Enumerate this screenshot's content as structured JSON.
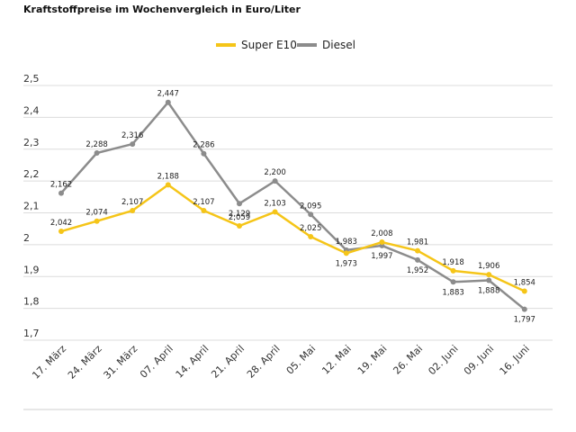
{
  "chart_data": {
    "type": "line",
    "title": "Kraftstoffpreise im Wochenvergleich in Euro/Liter",
    "categories": [
      "17. März",
      "24. März",
      "31. März",
      "07. April",
      "14. April",
      "21. April",
      "28. April",
      "05. Mai",
      "12. Mai",
      "19. Mai",
      "26. Mai",
      "02. Juni",
      "09. Juni",
      "16. Juni"
    ],
    "y_ticks": [
      "2,5",
      "2,4",
      "2,3",
      "2,2",
      "2,1",
      "2",
      "1,9",
      "1,8",
      "1,7"
    ],
    "ylim": [
      1.7,
      2.5
    ],
    "grid": true,
    "legend_placement": "top-center",
    "series": [
      {
        "name": "Super E10",
        "color": "#f5c518",
        "values": [
          2.042,
          2.074,
          2.107,
          2.188,
          2.107,
          2.059,
          2.103,
          2.025,
          1.973,
          2.008,
          1.981,
          1.918,
          1.906,
          1.854
        ],
        "labels": [
          "2,042",
          "2,074",
          "2,107",
          "2,188",
          "2,107",
          "2,059",
          "2,103",
          "2,025",
          "1,973",
          "2,008",
          "1,981",
          "1,918",
          "1,906",
          "1,854"
        ]
      },
      {
        "name": "Diesel",
        "color": "#8c8c8c",
        "values": [
          2.162,
          2.288,
          2.316,
          2.447,
          2.286,
          2.129,
          2.2,
          2.095,
          1.983,
          1.997,
          1.952,
          1.883,
          1.888,
          1.797
        ],
        "labels": [
          "2,162",
          "2,288",
          "2,316",
          "2,447",
          "2,286",
          "2,129",
          "2,200",
          "2,095",
          "1,983",
          "1,997",
          "1,952",
          "1,883",
          "1,888",
          "1,797"
        ]
      }
    ]
  }
}
